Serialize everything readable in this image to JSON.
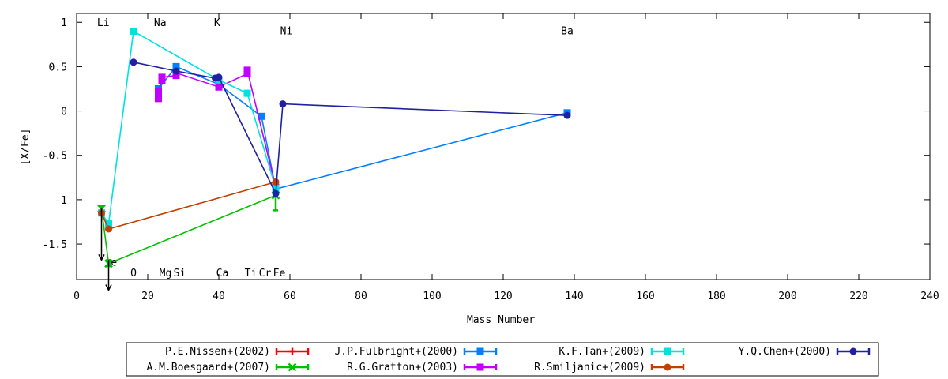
{
  "chart_data": {
    "type": "line",
    "xlabel": "Mass Number",
    "ylabel": "[X/Fe]",
    "xlim": [
      0,
      240
    ],
    "ylim": [
      -1.9,
      1.1
    ],
    "x_ticks": [
      0,
      20,
      40,
      60,
      80,
      100,
      120,
      140,
      160,
      180,
      200,
      220,
      240
    ],
    "y_ticks": [
      1,
      0.5,
      0,
      -0.5,
      -1,
      -1.5
    ],
    "grid": false,
    "legend_position": "bottom",
    "element_labels": [
      {
        "text": "Li",
        "x": 7.5,
        "y": 1.0
      },
      {
        "text": "Na",
        "x": 23.5,
        "y": 1.0
      },
      {
        "text": "K",
        "x": 39.5,
        "y": 1.0
      },
      {
        "text": "Ni",
        "x": 59,
        "y": 0.91
      },
      {
        "text": "Ba",
        "x": 138,
        "y": 0.91
      },
      {
        "text": "e",
        "x": 10.5,
        "y": -1.7
      },
      {
        "text": "O",
        "x": 16,
        "y": -1.82
      },
      {
        "text": "Mg",
        "x": 25,
        "y": -1.82
      },
      {
        "text": "Si",
        "x": 29,
        "y": -1.82
      },
      {
        "text": "Ca",
        "x": 41,
        "y": -1.82
      },
      {
        "text": "Ti",
        "x": 49,
        "y": -1.82
      },
      {
        "text": "Cr",
        "x": 53,
        "y": -1.82
      },
      {
        "text": "Fe",
        "x": 57,
        "y": -1.82
      }
    ],
    "upper_limits": [
      {
        "x": 7,
        "y_from": -1.1,
        "y_to": -1.68
      },
      {
        "x": 9,
        "y_from": -1.68,
        "y_to": -2.02
      }
    ],
    "series": [
      {
        "name": "P.E.Nissen+(2002)",
        "color": "#ff0000",
        "marker": "plus",
        "points": []
      },
      {
        "name": "A.M.Boesgaard+(2007)",
        "color": "#00c000",
        "marker": "cross",
        "points": [
          [
            7,
            -1.1
          ],
          [
            9,
            -1.72
          ],
          [
            56,
            -0.95
          ]
        ],
        "errors": [
          [
            7,
            -1.07,
            -1.13
          ],
          [
            9,
            -1.68,
            -1.75
          ],
          [
            56,
            -0.93,
            -1.12
          ]
        ]
      },
      {
        "name": "J.P.Fulbright+(2000)",
        "color": "#0080ff",
        "marker": "square",
        "points": [
          [
            23,
            0.25
          ],
          [
            28,
            0.5
          ],
          [
            40,
            0.3
          ],
          [
            52,
            -0.06
          ],
          [
            56,
            -0.88
          ],
          [
            138,
            -0.02
          ]
        ]
      },
      {
        "name": "R.G.Gratton+(2003)",
        "color": "#c000ff",
        "marker": "square",
        "points": [
          [
            23,
            0.14
          ],
          [
            23,
            0.18
          ],
          [
            23,
            0.22
          ],
          [
            24,
            0.34
          ],
          [
            24,
            0.38
          ],
          [
            28,
            0.4
          ],
          [
            28,
            0.43
          ],
          [
            40,
            0.27
          ],
          [
            48,
            0.42
          ],
          [
            48,
            0.46
          ],
          [
            56,
            -0.86
          ]
        ]
      },
      {
        "name": "K.F.Tan+(2009)",
        "color": "#00e0e0",
        "marker": "square",
        "points": [
          [
            7,
            -1.15
          ],
          [
            9,
            -1.27
          ],
          [
            16,
            0.9
          ],
          [
            40,
            0.35
          ],
          [
            48,
            0.2
          ],
          [
            56,
            -0.87
          ]
        ]
      },
      {
        "name": "R.Smiljanic+(2009)",
        "color": "#c04000",
        "marker": "circle",
        "points": [
          [
            7,
            -1.15
          ],
          [
            9,
            -1.33
          ],
          [
            56,
            -0.8
          ]
        ]
      },
      {
        "name": "Y.Q.Chen+(2000)",
        "color": "#2020a0",
        "marker": "circle",
        "points": [
          [
            16,
            0.55
          ],
          [
            28,
            0.45
          ],
          [
            39,
            0.37
          ],
          [
            40,
            0.38
          ],
          [
            56,
            -0.93
          ],
          [
            58,
            0.08
          ],
          [
            138,
            -0.05
          ]
        ]
      }
    ]
  }
}
